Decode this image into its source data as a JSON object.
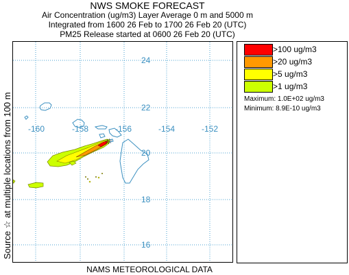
{
  "header": {
    "title": "NWS SMOKE FORECAST",
    "line1": "Air Concentration (ug/m3) Layer Average    0 m and  5000 m",
    "line2": "Integrated from 1600 26 Feb to 1700 26 Feb 20 (UTC)",
    "line3": "PM25 Release started at 0600 26 Feb 20 (UTC)"
  },
  "side_label": "Source ☆    at multiple locations        from  100 m",
  "footer": "NAMS METEOROLOGICAL DATA",
  "map": {
    "lat_labels": [
      "24",
      "22",
      "20",
      "18",
      "16"
    ],
    "lon_labels": [
      "-160",
      "-158",
      "-156",
      "-154",
      "-152"
    ],
    "grid_color": "#4aa0d0",
    "coast_color": "#3a8fc0"
  },
  "legend": {
    "items": [
      {
        "label": ">100 ug/m3",
        "color": "#ff0000"
      },
      {
        "label": ">20 ug/m3",
        "color": "#ff9900"
      },
      {
        "label": ">5 ug/m3",
        "color": "#ffff00"
      },
      {
        "label": ">1 ug/m3",
        "color": "#ccff00"
      }
    ],
    "maximum": "Maximum: 1.0E+02 ug/m3",
    "minimum": "Minimum: 8.9E-10 ug/m3"
  }
}
